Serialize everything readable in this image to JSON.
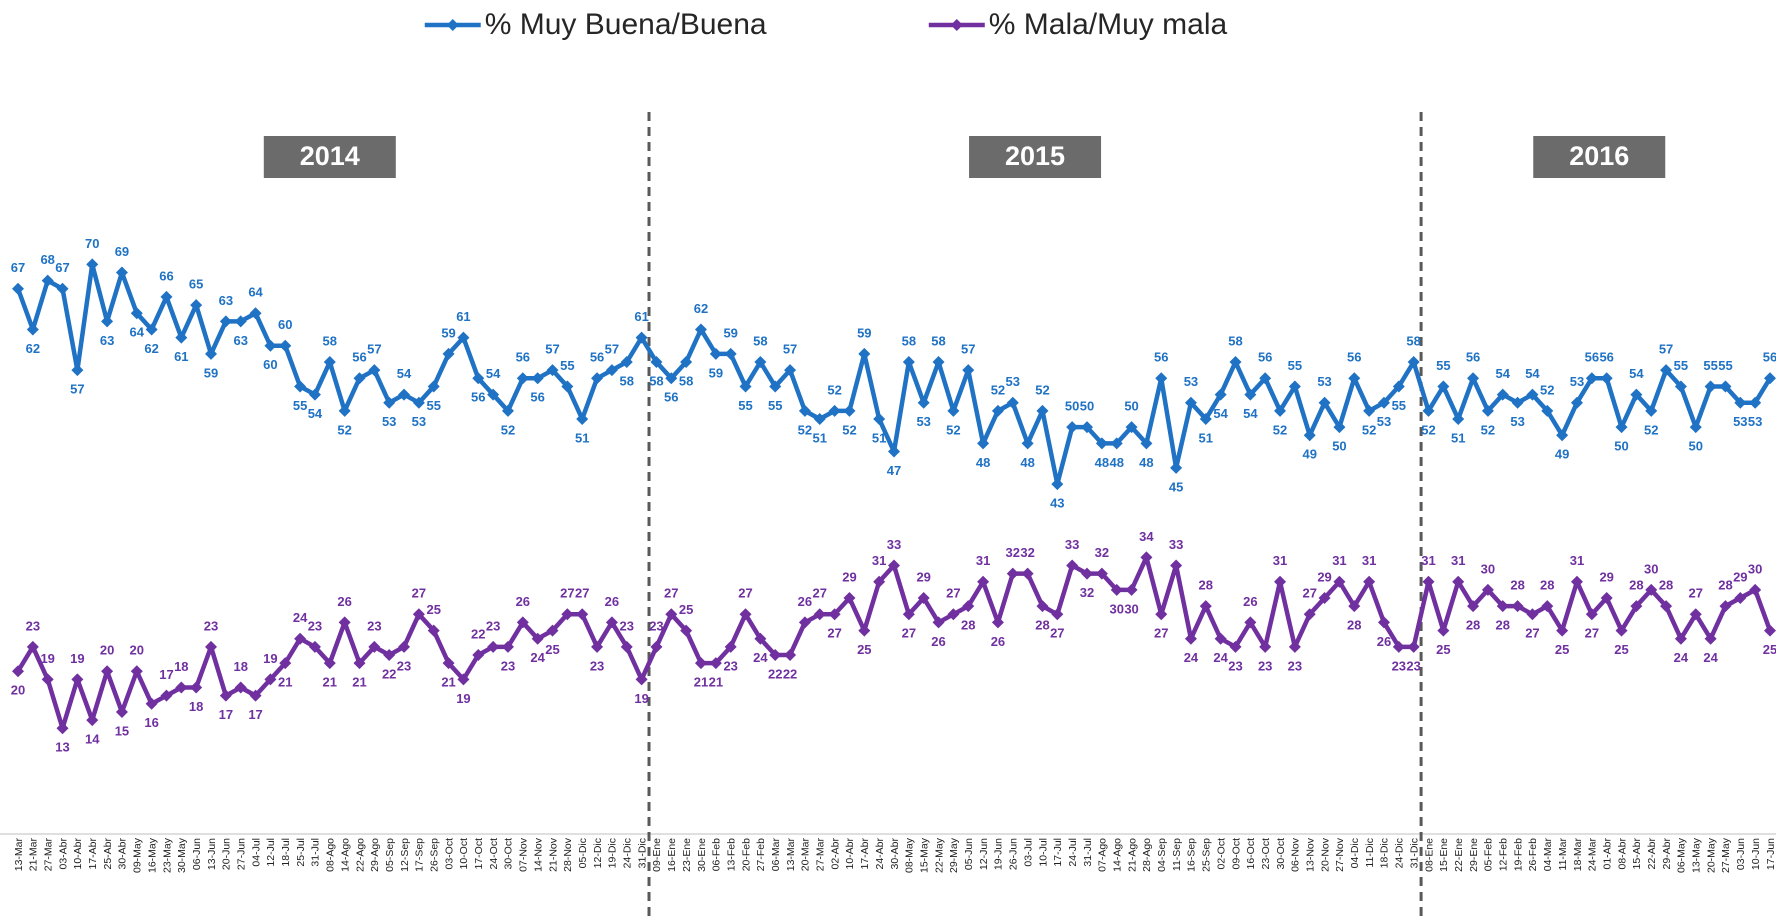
{
  "chart_data": {
    "type": "line",
    "annotations": [
      "2014",
      "2015",
      "2016"
    ],
    "categories": [
      "13-Mar",
      "21-Mar",
      "27-Mar",
      "03-Abr",
      "10-Abr",
      "17-Abr",
      "25-Abr",
      "30-Abr",
      "09-May",
      "16-May",
      "23-May",
      "30-May",
      "06-Jun",
      "13-Jun",
      "20-Jun",
      "27-Jun",
      "04-Jul",
      "12-Jul",
      "18-Jul",
      "25-Jul",
      "31-Jul",
      "08-Ago",
      "14-Ago",
      "22-Ago",
      "29-Ago",
      "05-Sep",
      "12-Sep",
      "17-Sep",
      "26-Sep",
      "03-Oct",
      "10-Oct",
      "17-Oct",
      "24-Oct",
      "30-Oct",
      "07-Nov",
      "14-Nov",
      "21-Nov",
      "28-Nov",
      "05-Dic",
      "12-Dic",
      "19-Dic",
      "24-Dic",
      "31-Dic",
      "09-Ene",
      "16-Ene",
      "23-Ene",
      "30-Ene",
      "06-Feb",
      "13-Feb",
      "20-Feb",
      "27-Feb",
      "06-Mar",
      "13-Mar",
      "20-Mar",
      "27-Mar",
      "02-Abr",
      "10-Abr",
      "17-Abr",
      "24-Abr",
      "30-Abr",
      "08-May",
      "15-May",
      "22-May",
      "29-May",
      "05-Jun",
      "12-Jun",
      "19-Jun",
      "26-Jun",
      "03-Jul",
      "10-Jul",
      "17-Jul",
      "24-Jul",
      "31-Jul",
      "07-Ago",
      "14-Ago",
      "21-Ago",
      "28-Ago",
      "04-Sep",
      "11-Sep",
      "16-Sep",
      "25-Sep",
      "02-Oct",
      "09-Oct",
      "16-Oct",
      "23-Oct",
      "30-Oct",
      "06-Nov",
      "13-Nov",
      "20-Nov",
      "27-Nov",
      "04-Dic",
      "11-Dic",
      "18-Dic",
      "24-Dic",
      "31-Dic",
      "08-Ene",
      "15-Ene",
      "22-Ene",
      "29-Ene",
      "05-Feb",
      "12-Feb",
      "19-Feb",
      "26-Feb",
      "04-Mar",
      "11-Mar",
      "18-Mar",
      "24-Mar",
      "01-Abr",
      "08-Abr",
      "15-Abr",
      "22-Abr",
      "29-Abr",
      "06-May",
      "13-May",
      "20-May",
      "27-May",
      "03-Jun",
      "10-Jun",
      "17-Jun"
    ],
    "series": [
      {
        "name": "% Muy Buena/Buena",
        "color": "#1f72c4",
        "values": [
          67,
          62,
          68,
          67,
          57,
          70,
          63,
          69,
          64,
          62,
          66,
          61,
          65,
          59,
          63,
          63,
          64,
          60,
          60,
          55,
          54,
          58,
          52,
          56,
          57,
          53,
          54,
          53,
          55,
          59,
          61,
          56,
          54,
          52,
          56,
          56,
          57,
          55,
          51,
          56,
          57,
          58,
          61,
          58,
          56,
          58,
          62,
          59,
          59,
          55,
          58,
          55,
          57,
          52,
          51,
          52,
          52,
          59,
          51,
          47,
          58,
          53,
          58,
          52,
          57,
          48,
          52,
          53,
          48,
          52,
          43,
          50,
          50,
          48,
          48,
          50,
          48,
          56,
          45,
          53,
          51,
          54,
          58,
          54,
          56,
          52,
          55,
          49,
          53,
          50,
          56,
          52,
          53,
          55,
          58,
          52,
          55,
          51,
          56,
          52,
          54,
          53,
          54,
          52,
          49,
          53,
          56,
          56,
          50,
          54,
          52,
          57,
          55,
          50,
          55,
          55,
          53,
          53,
          56
        ]
      },
      {
        "name": "% Mala/Muy mala",
        "color": "#7030a0",
        "values": [
          20,
          23,
          19,
          13,
          19,
          14,
          20,
          15,
          20,
          16,
          17,
          18,
          18,
          23,
          17,
          18,
          17,
          19,
          21,
          24,
          23,
          21,
          26,
          21,
          23,
          22,
          23,
          27,
          25,
          21,
          19,
          22,
          23,
          23,
          26,
          24,
          25,
          27,
          27,
          23,
          26,
          23,
          19,
          23,
          27,
          25,
          21,
          21,
          23,
          27,
          24,
          22,
          22,
          26,
          27,
          27,
          29,
          25,
          31,
          33,
          27,
          29,
          26,
          27,
          28,
          31,
          26,
          32,
          32,
          28,
          27,
          33,
          32,
          32,
          30,
          30,
          34,
          27,
          33,
          24,
          28,
          24,
          23,
          26,
          23,
          31,
          23,
          27,
          29,
          31,
          28,
          31,
          26,
          23,
          23,
          31,
          25,
          31,
          28,
          30,
          28,
          28,
          27,
          28,
          25,
          31,
          27,
          29,
          25,
          28,
          30,
          28,
          24,
          27,
          24,
          28,
          29,
          30,
          25
        ]
      }
    ],
    "ylim": [
      0,
      80
    ]
  }
}
